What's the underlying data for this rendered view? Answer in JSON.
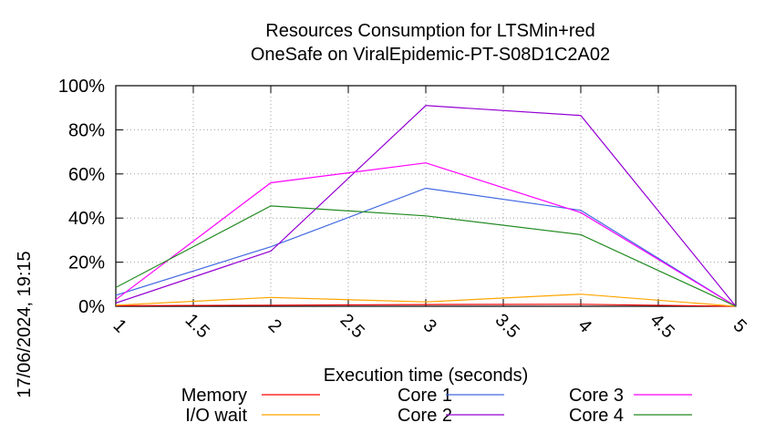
{
  "chart_data": {
    "type": "line",
    "title_line1": "Resources Consumption for LTSMin+red",
    "title_line2": "OneSafe on ViralEpidemic-PT-S08D1C2A02",
    "xlabel": "Execution time (seconds)",
    "ylabel": "",
    "side_label": "17/06/2024, 19:15",
    "xlim": [
      1,
      5
    ],
    "ylim": [
      0,
      100
    ],
    "x_ticks": [
      "1",
      "1.5",
      "2",
      "2.5",
      "3",
      "3.5",
      "4",
      "4.5",
      "5"
    ],
    "y_ticks": [
      "0%",
      "20%",
      "40%",
      "60%",
      "80%",
      "100%"
    ],
    "grid": true,
    "legend_position": "bottom",
    "x": [
      1,
      2,
      3,
      4,
      5
    ],
    "series": [
      {
        "name": "Memory",
        "color": "#ff0000",
        "values": [
          0.3,
          0.5,
          0.8,
          0.9,
          0
        ]
      },
      {
        "name": "I/O wait",
        "color": "#ffa500",
        "values": [
          0.5,
          4,
          2,
          5.5,
          0
        ]
      },
      {
        "name": "Core 1",
        "color": "#4169e1",
        "values": [
          5,
          27,
          53.5,
          43.5,
          0
        ]
      },
      {
        "name": "Core 2",
        "color": "#9400d3",
        "values": [
          1.5,
          25,
          91,
          86.5,
          0
        ]
      },
      {
        "name": "Core 3",
        "color": "#ff00ff",
        "values": [
          3,
          56,
          65,
          42.5,
          0
        ]
      },
      {
        "name": "Core 4",
        "color": "#228b22",
        "values": [
          8.5,
          45.5,
          41,
          32.5,
          0
        ]
      }
    ]
  }
}
